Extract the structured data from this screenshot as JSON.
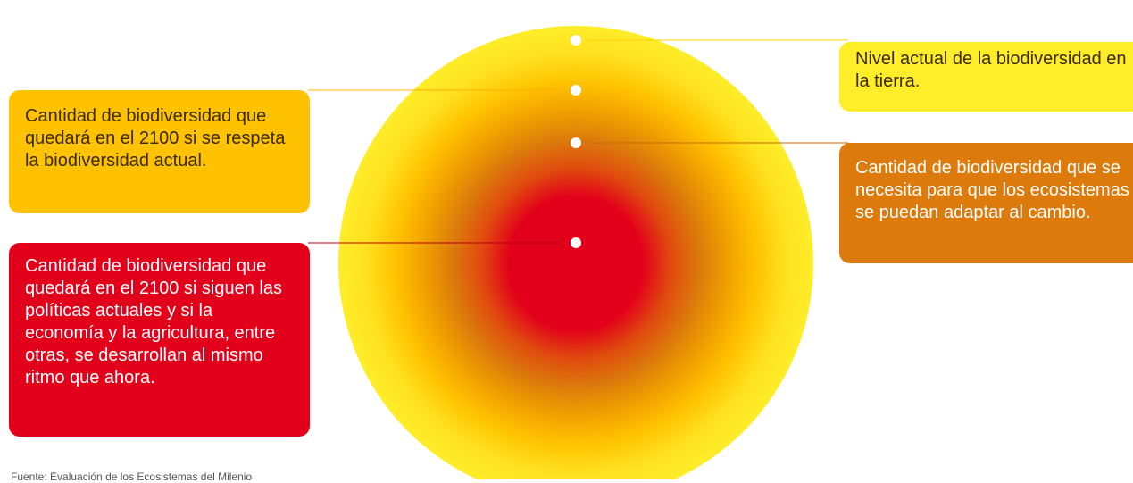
{
  "colors": {
    "yellow": "#FFED29",
    "orange_yellow": "#FFC200",
    "dark_orange": "#DC7A0B",
    "red": "#E2001A",
    "dot": "#FFFFFF"
  },
  "labels": {
    "current": "Nivel actual de la biodiversidad en la tierra.",
    "respected": "Cantidad de biodiversidad que quedará en el 2100 si se respeta la biodiversidad actual.",
    "needed": "Cantidad de biodiversidad que se necesita para que los ecosistemas se puedan adaptar al cambio.",
    "policies": "Cantidad de biodiversidad que quedará en el 2100 si siguen las políticas actuales y si la economía y la agricultura, entre otras, se desarrollan al mismo ritmo que ahora."
  },
  "source": "Fuente: Evaluación de los Ecosistemas del Milenio"
}
